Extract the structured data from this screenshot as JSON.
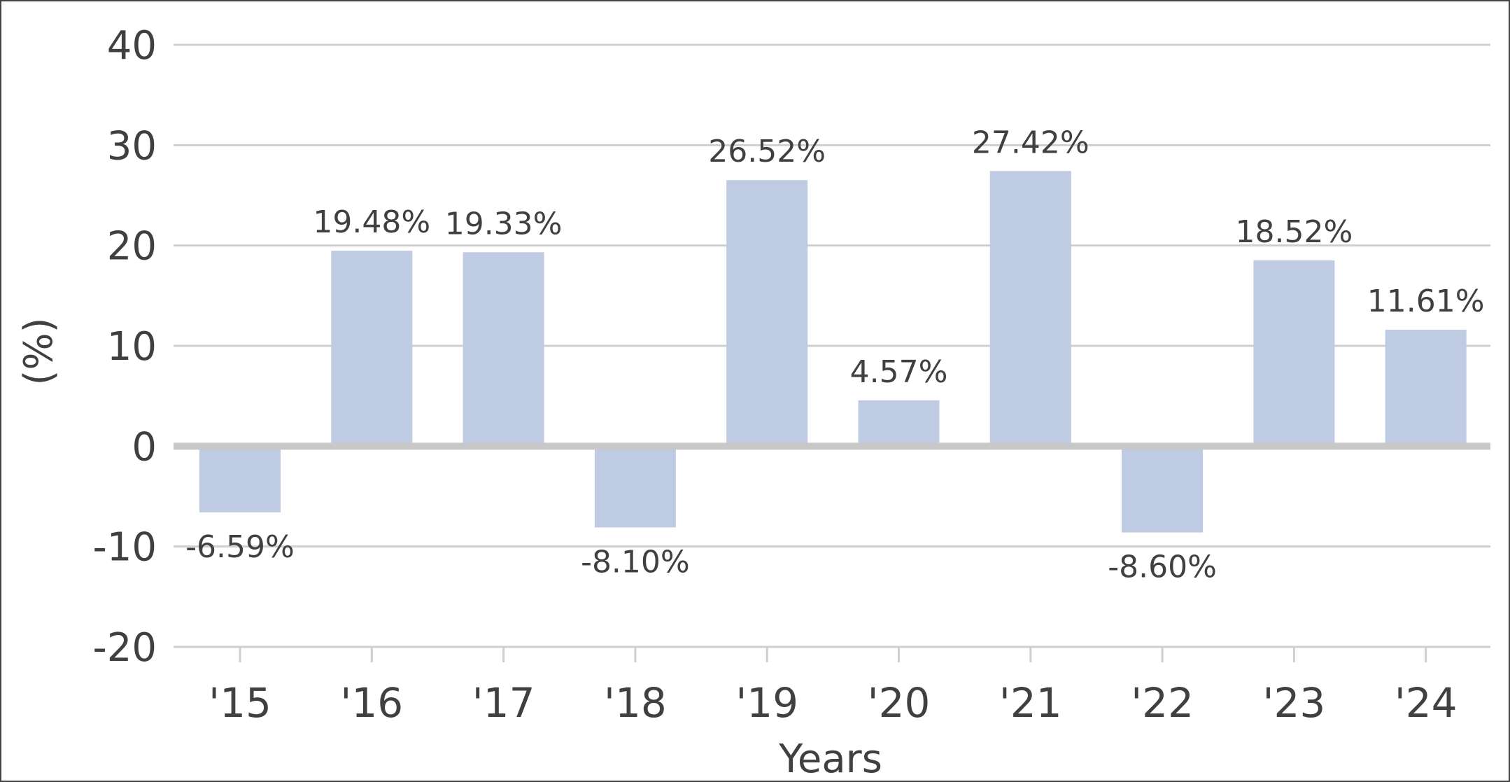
{
  "chart_data": {
    "type": "bar",
    "categories": [
      "'15",
      "'16",
      "'17",
      "'18",
      "'19",
      "'20",
      "'21",
      "'22",
      "'23",
      "'24"
    ],
    "values": [
      -6.59,
      19.48,
      19.33,
      -8.1,
      26.52,
      4.57,
      27.42,
      -8.6,
      18.52,
      11.61
    ],
    "data_labels": [
      "-6.59%",
      "19.48%",
      "19.33%",
      "-8.10%",
      "26.52%",
      "4.57%",
      "27.42%",
      "-8.60%",
      "18.52%",
      "11.61%"
    ],
    "xlabel": "Years",
    "ylabel": "(%)",
    "ylim": [
      -20,
      40
    ],
    "yticks": [
      40,
      30,
      20,
      10,
      0,
      -10,
      -20
    ],
    "grid": true,
    "legend": "none",
    "bar_color": "#bfcbe3",
    "zero_line_color": "#c8c8c8",
    "grid_color": "#cfcfcf",
    "text_color": "#404040"
  }
}
